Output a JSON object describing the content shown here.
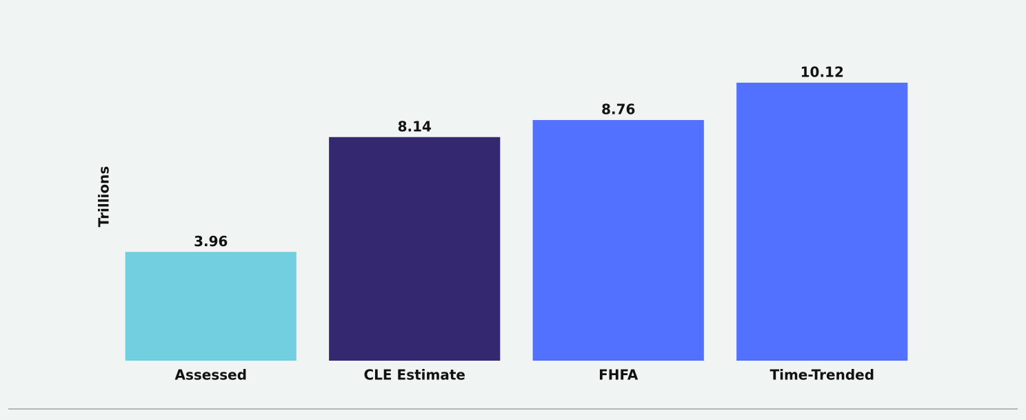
{
  "chart_data": {
    "type": "bar",
    "y_label": "Trillions",
    "categories": [
      "Assessed",
      "CLE Estimate",
      "FHFA",
      "Time-Trended"
    ],
    "values": [
      3.96,
      8.14,
      8.76,
      10.12
    ],
    "colors": [
      "#72cfe0",
      "#342970",
      "#5271ff",
      "#5271ff"
    ],
    "ylim": [
      0,
      12
    ]
  }
}
